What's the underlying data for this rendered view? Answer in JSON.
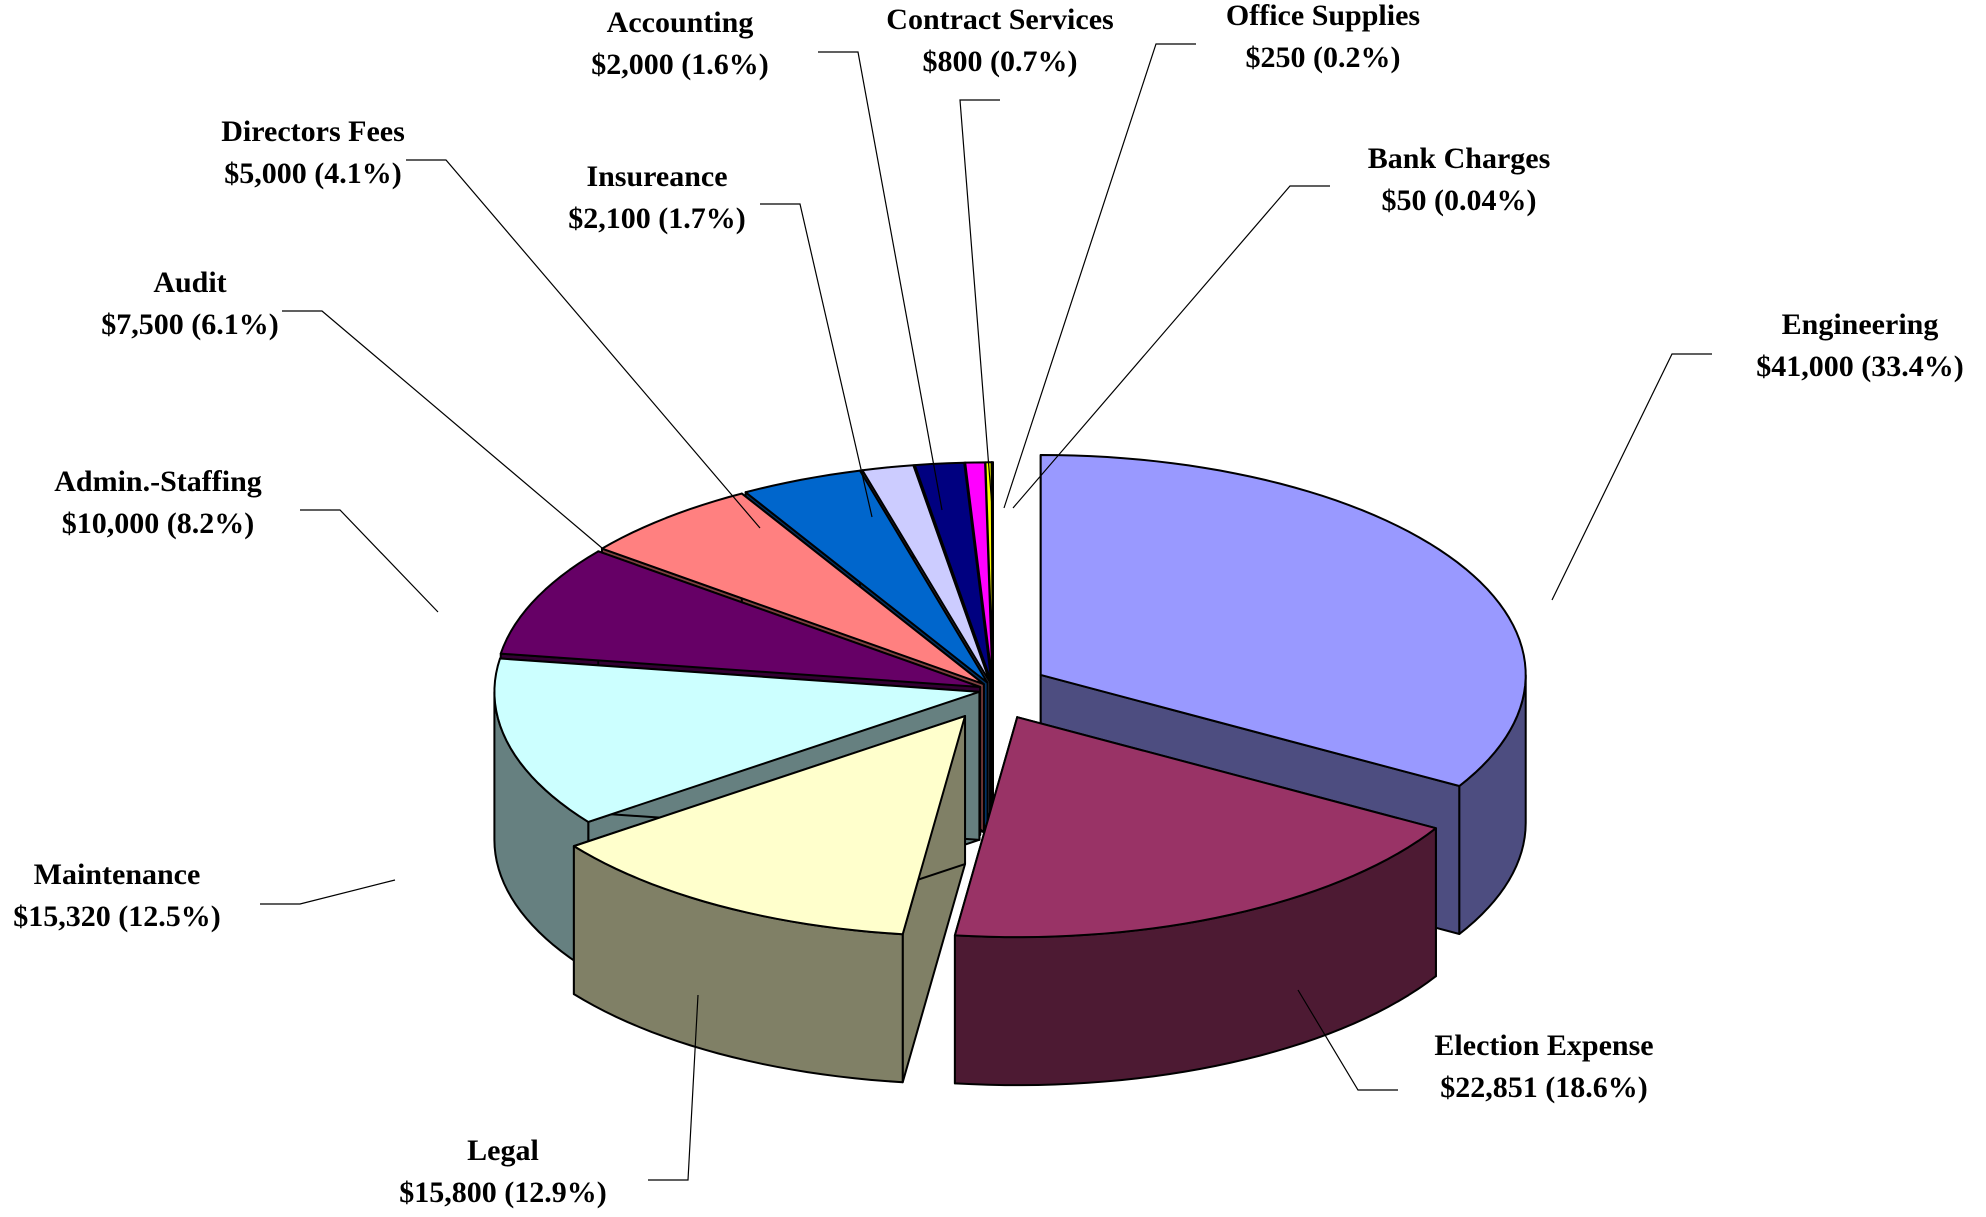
{
  "chart_data": {
    "type": "pie",
    "style": "3d-exploded",
    "legend": "none",
    "title": "",
    "slices": [
      {
        "name": "Engineering",
        "value": 41000,
        "value_label": "$41,000 (33.4%)",
        "color": "#9999FF",
        "side_color": "#4D4D80"
      },
      {
        "name": "Election Expense",
        "value": 22851,
        "value_label": "$22,851 (18.6%)",
        "color": "#993366",
        "side_color": "#4D1A33"
      },
      {
        "name": "Legal",
        "value": 15800,
        "value_label": "$15,800 (12.9%)",
        "color": "#FFFFCC",
        "side_color": "#808066"
      },
      {
        "name": "Maintenance",
        "value": 15320,
        "value_label": "$15,320 (12.5%)",
        "color": "#CCFFFF",
        "side_color": "#668080"
      },
      {
        "name": "Admin.-Staffing",
        "value": 10000,
        "value_label": "$10,000 (8.2%)",
        "color": "#660066",
        "side_color": "#330033"
      },
      {
        "name": "Audit",
        "value": 7500,
        "value_label": "$7,500 (6.1%)",
        "color": "#FF8080",
        "side_color": "#804040"
      },
      {
        "name": "Directors Fees",
        "value": 5000,
        "value_label": "$5,000 (4.1%)",
        "color": "#0066CC",
        "side_color": "#003366"
      },
      {
        "name": "Insureance",
        "value": 2100,
        "value_label": "$2,100 (1.7%)",
        "color": "#CCCCFF",
        "side_color": "#666680"
      },
      {
        "name": "Accounting",
        "value": 2000,
        "value_label": "$2,000 (1.6%)",
        "color": "#000080",
        "side_color": "#000040"
      },
      {
        "name": "Contract Services",
        "value": 800,
        "value_label": "$800 (0.7%)",
        "color": "#FF00FF",
        "side_color": "#800080"
      },
      {
        "name": "Office Supplies",
        "value": 250,
        "value_label": "$250 (0.2%)",
        "color": "#FFFF00",
        "side_color": "#808000"
      },
      {
        "name": "Bank Charges",
        "value": 50,
        "value_label": "$50 (0.04%)",
        "color": "#00FFFF",
        "side_color": "#008080"
      }
    ]
  }
}
